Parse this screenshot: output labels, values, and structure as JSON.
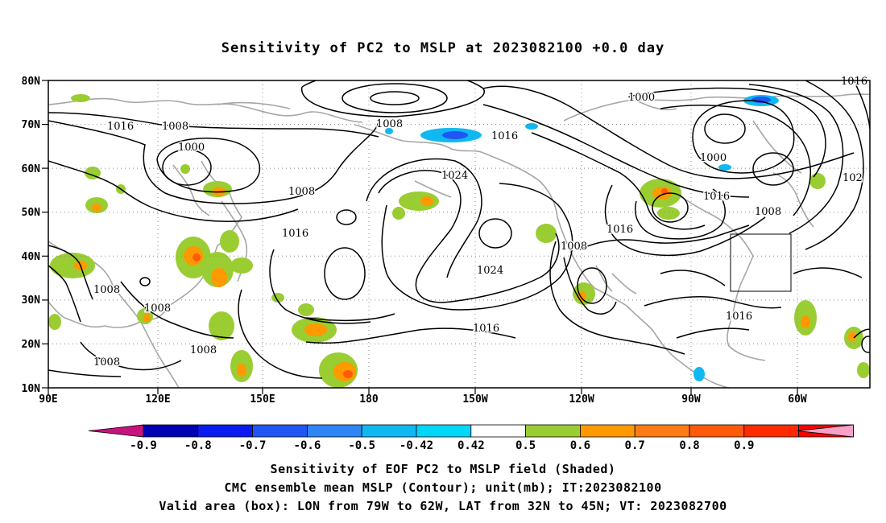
{
  "title": "Sensitivity of PC2 to MSLP at 2023082100 +0.0 day",
  "axes": {
    "lon_ticks": [
      "90E",
      "120E",
      "150E",
      "180",
      "150W",
      "120W",
      "90W",
      "60W"
    ],
    "lat_ticks": [
      "80N",
      "70N",
      "60N",
      "50N",
      "40N",
      "30N",
      "20N",
      "10N"
    ]
  },
  "colorbar": {
    "labels": [
      "-0.9",
      "-0.8",
      "-0.7",
      "-0.6",
      "-0.5",
      "-0.42",
      "0.42",
      "0.5",
      "0.6",
      "0.7",
      "0.8",
      "0.9"
    ],
    "colors": [
      "#c8137f",
      "#0000b4",
      "#0b1cf0",
      "#1f56f5",
      "#2e86f5",
      "#10b8f2",
      "#00d6f7",
      "#ffffff",
      "#9acd32",
      "#ff9900",
      "#ff7a14",
      "#ff5a0a",
      "#ff2a00",
      "#ff0000",
      "#f8a0c8"
    ]
  },
  "contour_labels": [
    "1016",
    "1008",
    "1000",
    "1008",
    "1016",
    "1008",
    "1008",
    "1008",
    "1008",
    "1008",
    "1016",
    "1024",
    "1024",
    "1016",
    "1016",
    "1008",
    "1016",
    "1000",
    "1000",
    "1016",
    "1008",
    "1016",
    "102",
    "1016"
  ],
  "valid_box": {
    "lon": [
      "79W",
      "62W"
    ],
    "lat": [
      "32N",
      "45N"
    ]
  },
  "captions": {
    "line1": "Sensitivity of EOF PC2 to MSLP field (Shaded)",
    "line2": "CMC ensemble mean MSLP (Contour); unit(mb); IT:2023082100",
    "line3": "Valid area (box): LON from 79W to 62W, LAT from 32N to 45N; VT: 2023082700"
  }
}
